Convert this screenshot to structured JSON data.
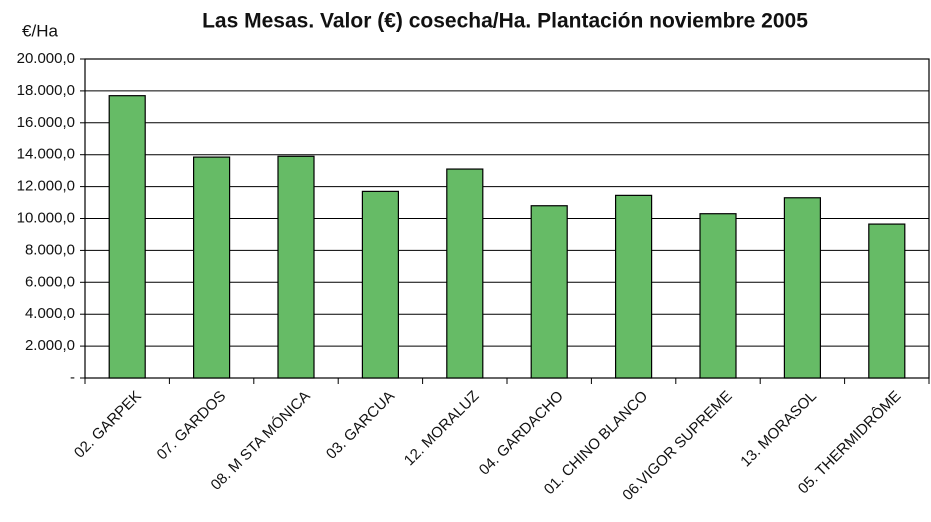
{
  "chart_data": {
    "type": "bar",
    "title": "Las Mesas. Valor (€) cosecha/Ha. Plantación noviembre 2005",
    "y_label": "€/Ha",
    "categories": [
      "02. GARPEK",
      "07. GARDOS",
      "08. M STA MÓNICA",
      "03. GARCUA",
      "12. MORALUZ",
      "04. GARDACHO",
      "01. CHINO BLANCO",
      "06.VIGOR SUPREME",
      "13. MORASOL",
      "05. THERMIDRÔME"
    ],
    "values": [
      17700,
      13850,
      13900,
      11700,
      13100,
      10800,
      11450,
      10300,
      11300,
      9650
    ],
    "color": "#66bb66",
    "ylim": [
      0,
      20000
    ],
    "yticks": [
      {
        "value": 0,
        "label": "-"
      },
      {
        "value": 2000,
        "label": "2.000,0"
      },
      {
        "value": 4000,
        "label": "4.000,0"
      },
      {
        "value": 6000,
        "label": "6.000,0"
      },
      {
        "value": 8000,
        "label": "8.000,0"
      },
      {
        "value": 10000,
        "label": "10.000,0"
      },
      {
        "value": 12000,
        "label": "12.000,0"
      },
      {
        "value": 14000,
        "label": "14.000,0"
      },
      {
        "value": 16000,
        "label": "16.000,0"
      },
      {
        "value": 18000,
        "label": "18.000,0"
      },
      {
        "value": 20000,
        "label": "20.000,0"
      }
    ],
    "grid": true
  }
}
